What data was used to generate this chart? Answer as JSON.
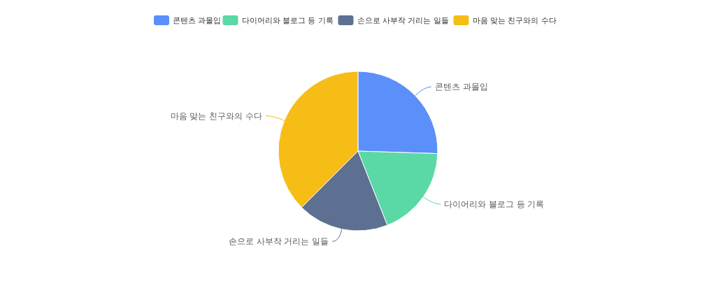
{
  "chart_data": {
    "type": "pie",
    "categories": [
      "콘텐츠 과몰입",
      "다이어리와 블로그 등 기록",
      "손으로 사부작 거리는 일들",
      "마음 맞는 친구와의 수다"
    ],
    "values": [
      25.5,
      18.5,
      18.5,
      37.5
    ],
    "colors": [
      "#5b8ff9",
      "#5ad8a6",
      "#5d7092",
      "#f6bd16"
    ],
    "legend": "top"
  }
}
